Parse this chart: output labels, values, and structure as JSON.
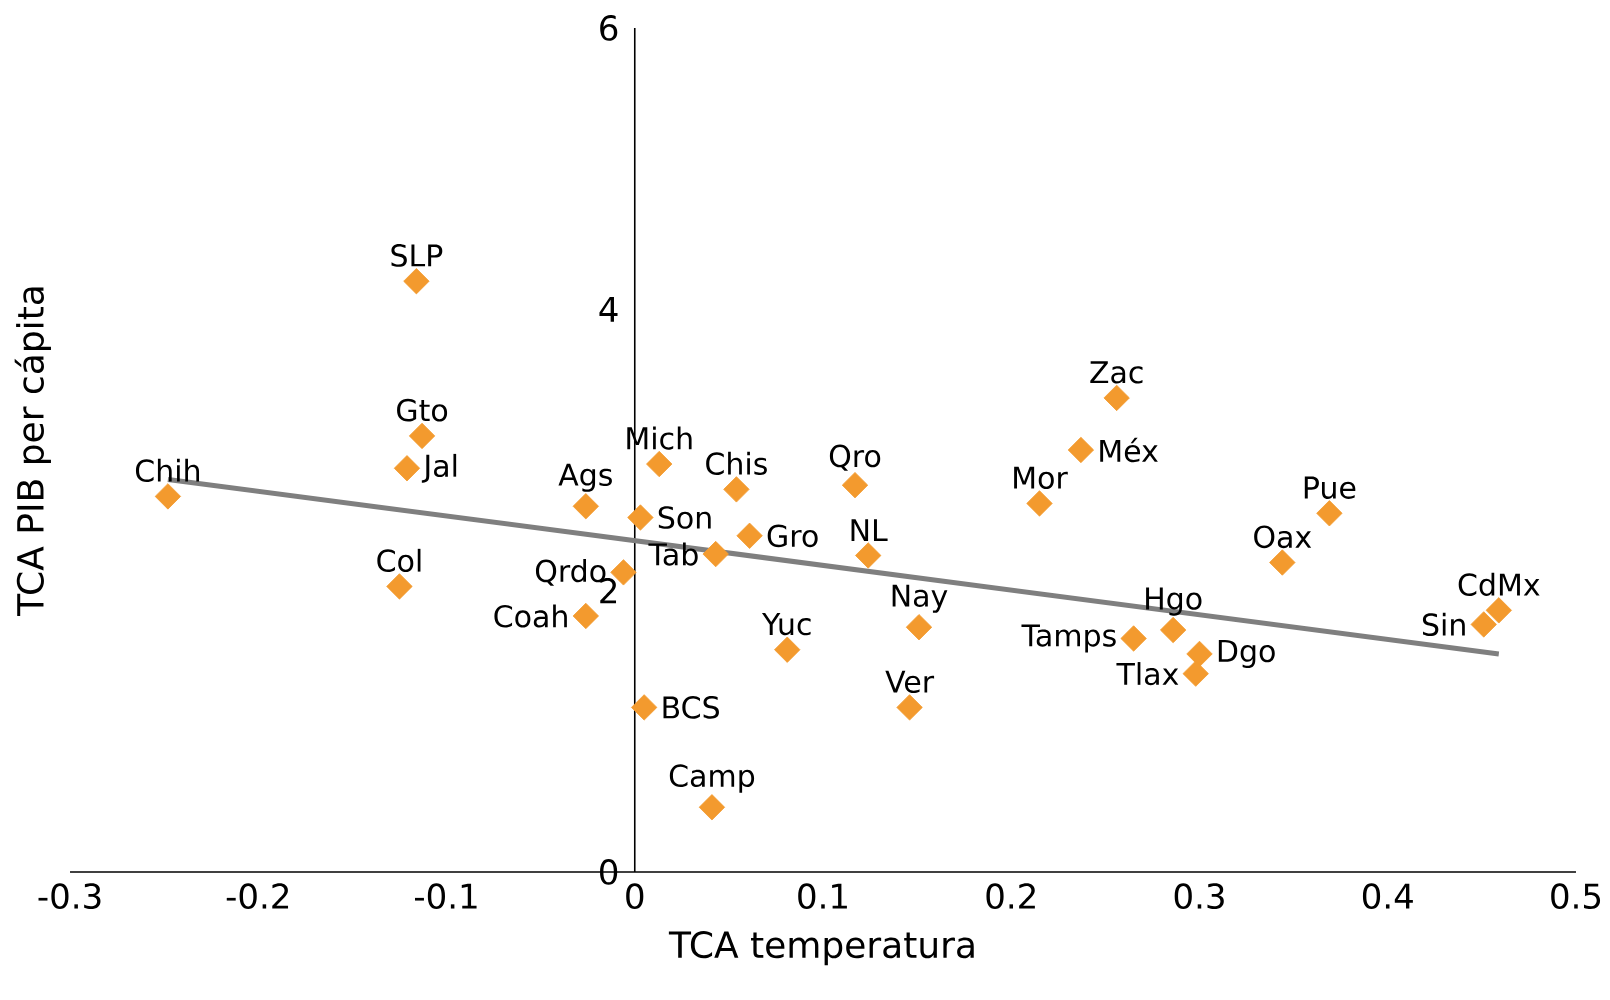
{
  "chart_data": {
    "type": "scatter",
    "xlabel": "TCA temperatura",
    "ylabel": "TCA PIB per cápita",
    "xlim": [
      -0.3,
      0.5
    ],
    "ylim": [
      0,
      6
    ],
    "xticks": [
      -0.3,
      -0.2,
      -0.1,
      0,
      0.1,
      0.2,
      0.3,
      0.4,
      0.5
    ],
    "yticks": [
      0,
      2,
      4,
      6
    ],
    "grid": false,
    "marker": "diamond",
    "series": [
      {
        "color": "#f39a2e",
        "x": [
          -0.248,
          -0.116,
          -0.113,
          -0.121,
          -0.125,
          -0.026,
          -0.026,
          -0.006,
          0.003,
          0.013,
          0.005,
          0.041,
          0.043,
          0.054,
          0.061,
          0.081,
          0.117,
          0.124,
          0.151,
          0.146,
          0.215,
          0.237,
          0.256,
          0.265,
          0.286,
          0.3,
          0.298,
          0.344,
          0.369,
          0.451,
          0.459
        ],
        "values": [
          2.67,
          4.2,
          3.1,
          2.87,
          2.03,
          2.6,
          1.82,
          2.13,
          2.52,
          2.9,
          1.17,
          0.46,
          2.26,
          2.72,
          2.39,
          1.58,
          2.75,
          2.25,
          1.74,
          1.17,
          2.62,
          3.0,
          3.37,
          1.66,
          1.72,
          1.55,
          1.41,
          2.2,
          2.55,
          1.76,
          1.86
        ]
      },
      {
        "type": "line",
        "color": "#7f7f7f",
        "marker": "none",
        "x": [
          -0.248,
          0.459
        ],
        "values": [
          2.79,
          1.55
        ]
      }
    ],
    "annotations": [
      {
        "text": "Chih",
        "x": -0.248,
        "y": 2.67
      },
      {
        "text": "SLP",
        "x": -0.116,
        "y": 4.2
      },
      {
        "text": "Gto",
        "x": -0.113,
        "y": 3.1
      },
      {
        "text": "Jal",
        "x": -0.121,
        "y": 2.87
      },
      {
        "text": "Col",
        "x": -0.125,
        "y": 2.03
      },
      {
        "text": "Ags",
        "x": -0.026,
        "y": 2.6
      },
      {
        "text": "Coah",
        "x": -0.026,
        "y": 1.82
      },
      {
        "text": "Qrdo",
        "x": -0.006,
        "y": 2.13
      },
      {
        "text": "Son",
        "x": 0.003,
        "y": 2.52
      },
      {
        "text": "Mich",
        "x": 0.013,
        "y": 2.9
      },
      {
        "text": "BCS",
        "x": 0.005,
        "y": 1.17
      },
      {
        "text": "Camp",
        "x": 0.041,
        "y": 0.46
      },
      {
        "text": "Tab",
        "x": 0.043,
        "y": 2.26
      },
      {
        "text": "Chis",
        "x": 0.054,
        "y": 2.72
      },
      {
        "text": "Gro",
        "x": 0.061,
        "y": 2.39
      },
      {
        "text": "Yuc",
        "x": 0.081,
        "y": 1.58
      },
      {
        "text": "Qro",
        "x": 0.117,
        "y": 2.75
      },
      {
        "text": "NL",
        "x": 0.124,
        "y": 2.25
      },
      {
        "text": "Nay",
        "x": 0.151,
        "y": 1.74
      },
      {
        "text": "Ver",
        "x": 0.146,
        "y": 1.17
      },
      {
        "text": "Mor",
        "x": 0.215,
        "y": 2.62
      },
      {
        "text": "Méx",
        "x": 0.237,
        "y": 3.0
      },
      {
        "text": "Zac",
        "x": 0.256,
        "y": 3.37
      },
      {
        "text": "Tamps",
        "x": 0.265,
        "y": 1.66
      },
      {
        "text": "Hgo",
        "x": 0.286,
        "y": 1.72
      },
      {
        "text": "Dgo",
        "x": 0.3,
        "y": 1.55
      },
      {
        "text": "Tlax",
        "x": 0.298,
        "y": 1.41
      },
      {
        "text": "Oax",
        "x": 0.344,
        "y": 2.2
      },
      {
        "text": "Pue",
        "x": 0.369,
        "y": 2.55
      },
      {
        "text": "Sin",
        "x": 0.451,
        "y": 1.76
      },
      {
        "text": "CdMx",
        "x": 0.459,
        "y": 1.86
      }
    ]
  }
}
